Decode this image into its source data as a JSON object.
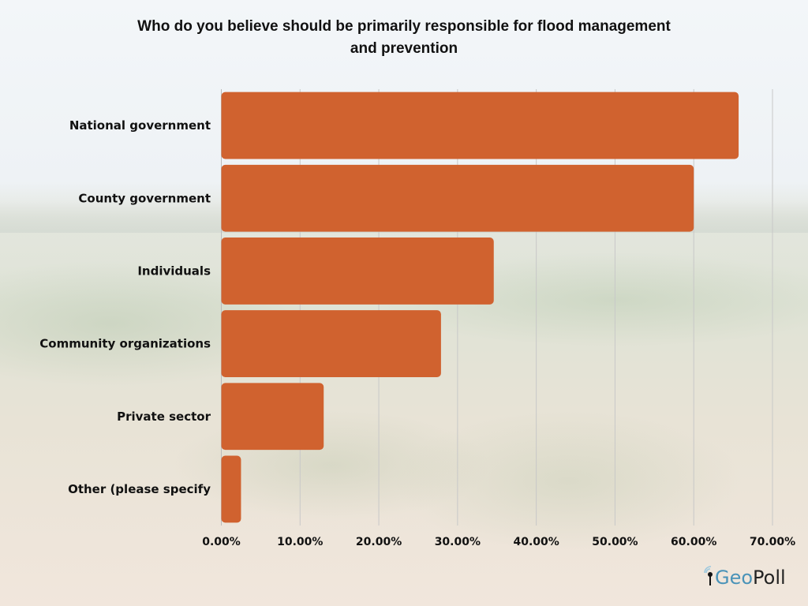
{
  "chart_data": {
    "type": "bar",
    "orientation": "horizontal",
    "title": "Who do you believe should be primarily responsible for flood management and prevention",
    "categories": [
      "National government",
      "County government",
      "Individuals",
      "Community organizations",
      "Private sector",
      "Other (please specify"
    ],
    "values": [
      65.7,
      60.0,
      34.6,
      27.9,
      13.0,
      2.5
    ],
    "unit": "%",
    "xlabel": "",
    "ylabel": "",
    "xlim": [
      0,
      70
    ],
    "xticks": [
      0,
      10,
      20,
      30,
      40,
      50,
      60,
      70
    ],
    "xtick_labels": [
      "0.00%",
      "10.00%",
      "20.00%",
      "30.00%",
      "40.00%",
      "50.00%",
      "60.00%",
      "70.00%"
    ],
    "grid": "vertical",
    "legend": "none",
    "bar_color": "#d0622f"
  },
  "title_line1": "Who do you believe should be primarily responsible for flood management",
  "title_line2": "and prevention",
  "logo": {
    "part1": "Geo",
    "part2": "Poll"
  }
}
